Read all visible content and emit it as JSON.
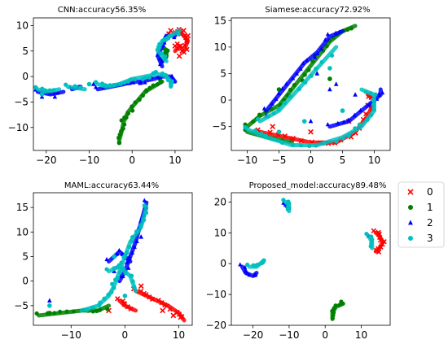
{
  "colors": {
    "0": "#ff0000",
    "1": "#008000",
    "2": "#0000ff",
    "3": "#00bfbf"
  },
  "legend": {
    "placement": "right",
    "entries": [
      {
        "label": "0",
        "marker": "x"
      },
      {
        "label": "1",
        "marker": "circle"
      },
      {
        "label": "2",
        "marker": "triangle"
      },
      {
        "label": "3",
        "marker": "circle"
      }
    ]
  },
  "chart_data": [
    {
      "type": "scatter",
      "title": "CNN:accuracy56.35%",
      "xlim": [
        -23,
        14
      ],
      "ylim": [
        -14.5,
        11.5
      ],
      "xticks": [
        -20,
        -10,
        0,
        10
      ],
      "yticks": [
        -10,
        -5,
        0,
        5,
        10
      ],
      "series": [
        {
          "class": "0",
          "curves": [
            [
              [
                9,
                8
              ],
              [
                11,
                9
              ],
              [
                12,
                8
              ],
              [
                13,
                7
              ],
              [
                12,
                5
              ],
              [
                11,
                6
              ],
              [
                10,
                5
              ]
            ]
          ],
          "points": [
            [
              9,
              9
            ],
            [
              12,
              9
            ],
            [
              13,
              8
            ],
            [
              10,
              6
            ],
            [
              11,
              4
            ]
          ]
        },
        {
          "class": "1",
          "curves": [
            [
              [
                7,
                -1
              ],
              [
                5,
                -2
              ],
              [
                3,
                -3
              ],
              [
                1,
                -5
              ],
              [
                -1,
                -7
              ],
              [
                -2,
                -9
              ],
              [
                -2.5,
                -11
              ],
              [
                -3,
                -12.5
              ]
            ],
            [
              [
                7,
                3
              ],
              [
                8,
                4
              ],
              [
                8,
                5
              ],
              [
                7,
                6
              ]
            ]
          ],
          "points": [
            [
              -3,
              -13
            ]
          ]
        },
        {
          "class": "2",
          "curves": [
            [
              [
                -22,
                -3
              ],
              [
                -19,
                -3.5
              ],
              [
                -16,
                -3
              ]
            ],
            [
              [
                -14,
                -2.5
              ],
              [
                -12,
                -2
              ]
            ],
            [
              [
                -8,
                -2.5
              ],
              [
                -5,
                -2
              ],
              [
                -2,
                -1.5
              ],
              [
                0,
                -1
              ],
              [
                2,
                -1
              ],
              [
                5,
                -0.5
              ],
              [
                7,
                0
              ],
              [
                9,
                0
              ],
              [
                10,
                -1
              ]
            ],
            [
              [
                7,
                2
              ],
              [
                6,
                4
              ],
              [
                7,
                6
              ],
              [
                8,
                8
              ],
              [
                10,
                8
              ]
            ]
          ],
          "points": [
            [
              -21,
              -4
            ],
            [
              -18,
              -4
            ],
            [
              -9,
              -1.5
            ],
            [
              9,
              -1
            ]
          ]
        },
        {
          "class": "3",
          "curves": [
            [
              [
                -22,
                -2.5
              ],
              [
                -20,
                -3
              ],
              [
                -17,
                -2.5
              ]
            ],
            [
              [
                -15,
                -2
              ],
              [
                -11,
                -2.5
              ]
            ],
            [
              [
                -8,
                -1.5
              ],
              [
                -6,
                -2
              ],
              [
                -3,
                -1.5
              ],
              [
                0,
                -0.5
              ],
              [
                3,
                0
              ],
              [
                6,
                0.5
              ],
              [
                8,
                0
              ],
              [
                9,
                -1
              ],
              [
                9,
                -2
              ]
            ],
            [
              [
                8,
                3
              ],
              [
                6,
                5
              ],
              [
                7,
                7
              ],
              [
                9,
                8
              ],
              [
                11,
                9
              ]
            ]
          ],
          "points": [
            [
              -10,
              -1.5
            ],
            [
              -21,
              -3.5
            ]
          ]
        }
      ]
    },
    {
      "type": "scatter",
      "title": "Siamese:accuracy72.92%",
      "xlim": [
        -12.5,
        12.5
      ],
      "ylim": [
        -9.5,
        15.5
      ],
      "xticks": [
        -10,
        -5,
        0,
        5,
        10
      ],
      "yticks": [
        -5,
        0,
        5,
        10,
        15
      ],
      "series": [
        {
          "class": "0",
          "curves": [
            [
              [
                -8,
                -6
              ],
              [
                -4,
                -7
              ],
              [
                0,
                -8
              ],
              [
                4,
                -8
              ],
              [
                7,
                -6
              ],
              [
                9,
                -3
              ],
              [
                10,
                0
              ],
              [
                9,
                1
              ]
            ]
          ],
          "points": [
            [
              -6,
              -5
            ],
            [
              0,
              -6
            ],
            [
              6,
              -4
            ],
            [
              9,
              -1
            ],
            [
              -3,
              -7.5
            ]
          ]
        },
        {
          "class": "1",
          "curves": [
            [
              [
                -10,
                -5
              ],
              [
                -8,
                -3
              ],
              [
                -5,
                -1
              ],
              [
                -3,
                2
              ],
              [
                -1,
                5
              ],
              [
                1,
                8
              ],
              [
                3,
                11
              ],
              [
                5,
                13
              ],
              [
                7,
                14
              ]
            ],
            [
              [
                -10,
                -6
              ],
              [
                -7,
                -7
              ],
              [
                -3,
                -8
              ]
            ]
          ],
          "points": [
            [
              3,
              4
            ],
            [
              -5,
              2
            ]
          ]
        },
        {
          "class": "2",
          "curves": [
            [
              [
                -7,
                -2
              ],
              [
                -5,
                1
              ],
              [
                -3,
                4
              ],
              [
                -1,
                7
              ],
              [
                1,
                9
              ],
              [
                3,
                12
              ],
              [
                5,
                13
              ]
            ],
            [
              [
                3,
                -5
              ],
              [
                6,
                -4
              ],
              [
                9,
                -1
              ],
              [
                11,
                1
              ],
              [
                11,
                2
              ]
            ]
          ],
          "points": [
            [
              1,
              5
            ],
            [
              4,
              3
            ],
            [
              -7,
              -3
            ],
            [
              0,
              -4
            ],
            [
              3,
              2
            ],
            [
              7,
              1
            ]
          ]
        },
        {
          "class": "3",
          "curves": [
            [
              [
                -10,
                -5.5
              ],
              [
                -7,
                -7
              ],
              [
                -3,
                -8.5
              ],
              [
                1,
                -8.5
              ],
              [
                5,
                -7
              ],
              [
                8,
                -5
              ],
              [
                10,
                -2
              ],
              [
                10,
                1
              ],
              [
                8,
                2
              ]
            ],
            [
              [
                -8,
                -4
              ],
              [
                -5,
                -2
              ],
              [
                -2,
                2
              ],
              [
                1,
                6
              ],
              [
                4,
                10
              ]
            ]
          ],
          "points": [
            [
              -1,
              -4
            ],
            [
              5,
              -2
            ],
            [
              3,
              6
            ],
            [
              -5,
              -6
            ]
          ]
        }
      ]
    },
    {
      "type": "scatter",
      "title": "MAML:accuracy63.44%",
      "xlim": [
        -17,
        12.5
      ],
      "ylim": [
        -9,
        18
      ],
      "xticks": [
        -10,
        0,
        10
      ],
      "yticks": [
        -5,
        0,
        5,
        10,
        15
      ],
      "series": [
        {
          "class": "0",
          "curves": [
            [
              [
                2,
                -2
              ],
              [
                4,
                -3
              ],
              [
                6,
                -4
              ],
              [
                8,
                -5
              ],
              [
                10,
                -6.5
              ],
              [
                11,
                -8
              ]
            ],
            [
              [
                -1,
                -4
              ],
              [
                0,
                -5
              ],
              [
                2,
                -6
              ]
            ]
          ],
          "points": [
            [
              3,
              -1
            ],
            [
              7,
              -6
            ],
            [
              -3,
              -6
            ],
            [
              9,
              -7
            ]
          ]
        },
        {
          "class": "1",
          "curves": [
            [
              [
                -16,
                -7
              ],
              [
                -12,
                -6.5
              ],
              [
                -8,
                -6
              ],
              [
                -5,
                -6
              ],
              [
                -3,
                -5
              ]
            ]
          ],
          "points": [
            [
              -14,
              -6.5
            ],
            [
              -6,
              -5.5
            ]
          ]
        },
        {
          "class": "2",
          "curves": [
            [
              [
                4,
                16
              ],
              [
                3,
                12
              ],
              [
                2,
                8
              ],
              [
                1,
                5
              ],
              [
                0,
                2
              ],
              [
                -1,
                0
              ]
            ],
            [
              [
                -3,
                4
              ],
              [
                -1,
                6
              ],
              [
                1,
                4
              ]
            ]
          ],
          "points": [
            [
              -14,
              -4
            ],
            [
              -2,
              2
            ],
            [
              3,
              9
            ]
          ]
        },
        {
          "class": "3",
          "curves": [
            [
              [
                4,
                15
              ],
              [
                3,
                11
              ],
              [
                1,
                8
              ],
              [
                0,
                5
              ],
              [
                -1,
                2
              ],
              [
                -2,
                -1
              ],
              [
                -3,
                -3
              ],
              [
                -5,
                -5
              ],
              [
                -8,
                -6
              ]
            ],
            [
              [
                -3,
                2
              ],
              [
                -1,
                3
              ],
              [
                1,
                1
              ],
              [
                2,
                -2
              ]
            ]
          ],
          "points": [
            [
              -14,
              -5
            ],
            [
              -2,
              5
            ],
            [
              0,
              -3
            ]
          ]
        }
      ]
    },
    {
      "type": "scatter",
      "title": "Proposed_model:accuracy89.48%",
      "xlim": [
        -26,
        18
      ],
      "ylim": [
        -20,
        23
      ],
      "xticks": [
        -20,
        -10,
        0,
        10
      ],
      "yticks": [
        -20,
        -10,
        0,
        10,
        20
      ],
      "series": [
        {
          "class": "0",
          "curves": [
            [
              [
                14,
                10
              ],
              [
                15,
                9
              ],
              [
                16,
                7
              ],
              [
                15,
                5
              ],
              [
                14,
                4
              ]
            ]
          ],
          "points": []
        },
        {
          "class": "1",
          "curves": [
            [
              [
                5,
                -13
              ],
              [
                3,
                -14
              ],
              [
                2,
                -16
              ],
              [
                2,
                -18
              ]
            ]
          ],
          "points": []
        },
        {
          "class": "2",
          "curves": [
            [
              [
                -23,
                -1
              ],
              [
                -22,
                -3
              ],
              [
                -20,
                -4
              ],
              [
                -19,
                -3
              ]
            ],
            [
              [
                -11,
                19
              ],
              [
                -10,
                18
              ]
            ]
          ],
          "points": [
            [
              12,
              9
            ]
          ]
        },
        {
          "class": "3",
          "curves": [
            [
              [
                -21,
                -1
              ],
              [
                -19,
                -1
              ],
              [
                -18,
                0
              ],
              [
                -17,
                1
              ]
            ],
            [
              [
                -11,
                20
              ],
              [
                -10,
                19
              ],
              [
                -10,
                17
              ]
            ],
            [
              [
                12,
                9
              ],
              [
                13,
                7
              ],
              [
                13,
                5
              ]
            ]
          ],
          "points": [
            [
              -17,
              1
            ]
          ]
        }
      ]
    }
  ]
}
